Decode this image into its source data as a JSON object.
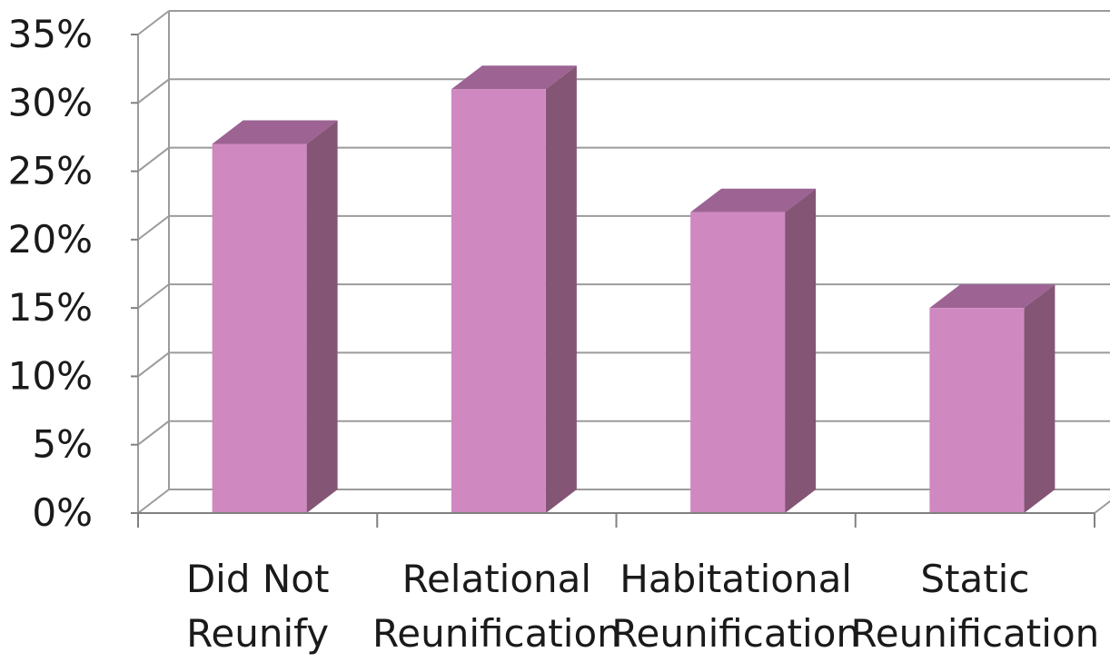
{
  "chart_data": {
    "type": "bar",
    "categories": [
      [
        "Did Not",
        "Reunify"
      ],
      [
        "Relational",
        "Reunification"
      ],
      [
        "Habitational",
        "Reunification"
      ],
      [
        "Static",
        "Reunification"
      ]
    ],
    "values": [
      27,
      31,
      22,
      15
    ],
    "value_format": "percent",
    "ylim": [
      0,
      35
    ],
    "yticks": [
      0,
      5,
      10,
      15,
      20,
      25,
      30,
      35
    ],
    "ytick_labels": [
      "0%",
      "5%",
      "10%",
      "15%",
      "20%",
      "25%",
      "30%",
      "35%"
    ],
    "title": "",
    "xlabel": "",
    "ylabel": "",
    "grid": true,
    "style": "3d-column",
    "colors": {
      "bar_front": "#d088c0",
      "bar_top": "#9c6393",
      "bar_side": "#845575",
      "gridline": "#9b9b9b",
      "axis": "#808080"
    }
  }
}
